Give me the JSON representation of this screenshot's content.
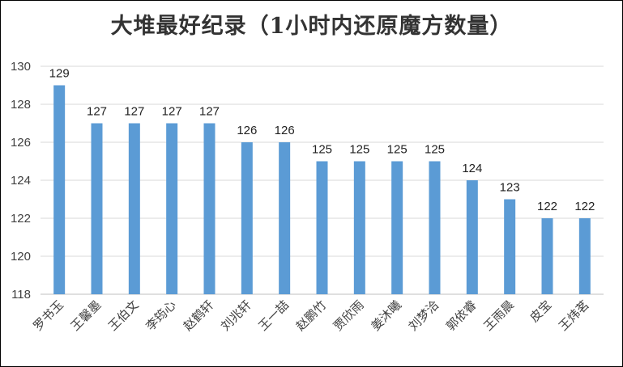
{
  "chart_data": {
    "type": "bar",
    "title": "大堆最好纪录（1小时内还原魔方数量）",
    "xlabel": "",
    "ylabel": "",
    "categories": [
      "罗书玉",
      "王馨墨",
      "王伯文",
      "李筠心",
      "赵鹤轩",
      "刘兆轩",
      "王一喆",
      "赵鹏竹",
      "贾欣雨",
      "姜沐曦",
      "刘梦洽",
      "郭依睿",
      "王雨晨",
      "皮宝",
      "王炜茗"
    ],
    "values": [
      129,
      127,
      127,
      127,
      127,
      126,
      126,
      125,
      125,
      125,
      125,
      124,
      123,
      122,
      122
    ],
    "ylim": [
      118,
      130
    ],
    "yticks": [
      118,
      120,
      122,
      124,
      126,
      128,
      130
    ],
    "grid": true,
    "legend": "none",
    "bar_color": "#5b9bd5",
    "data_labels": true
  }
}
